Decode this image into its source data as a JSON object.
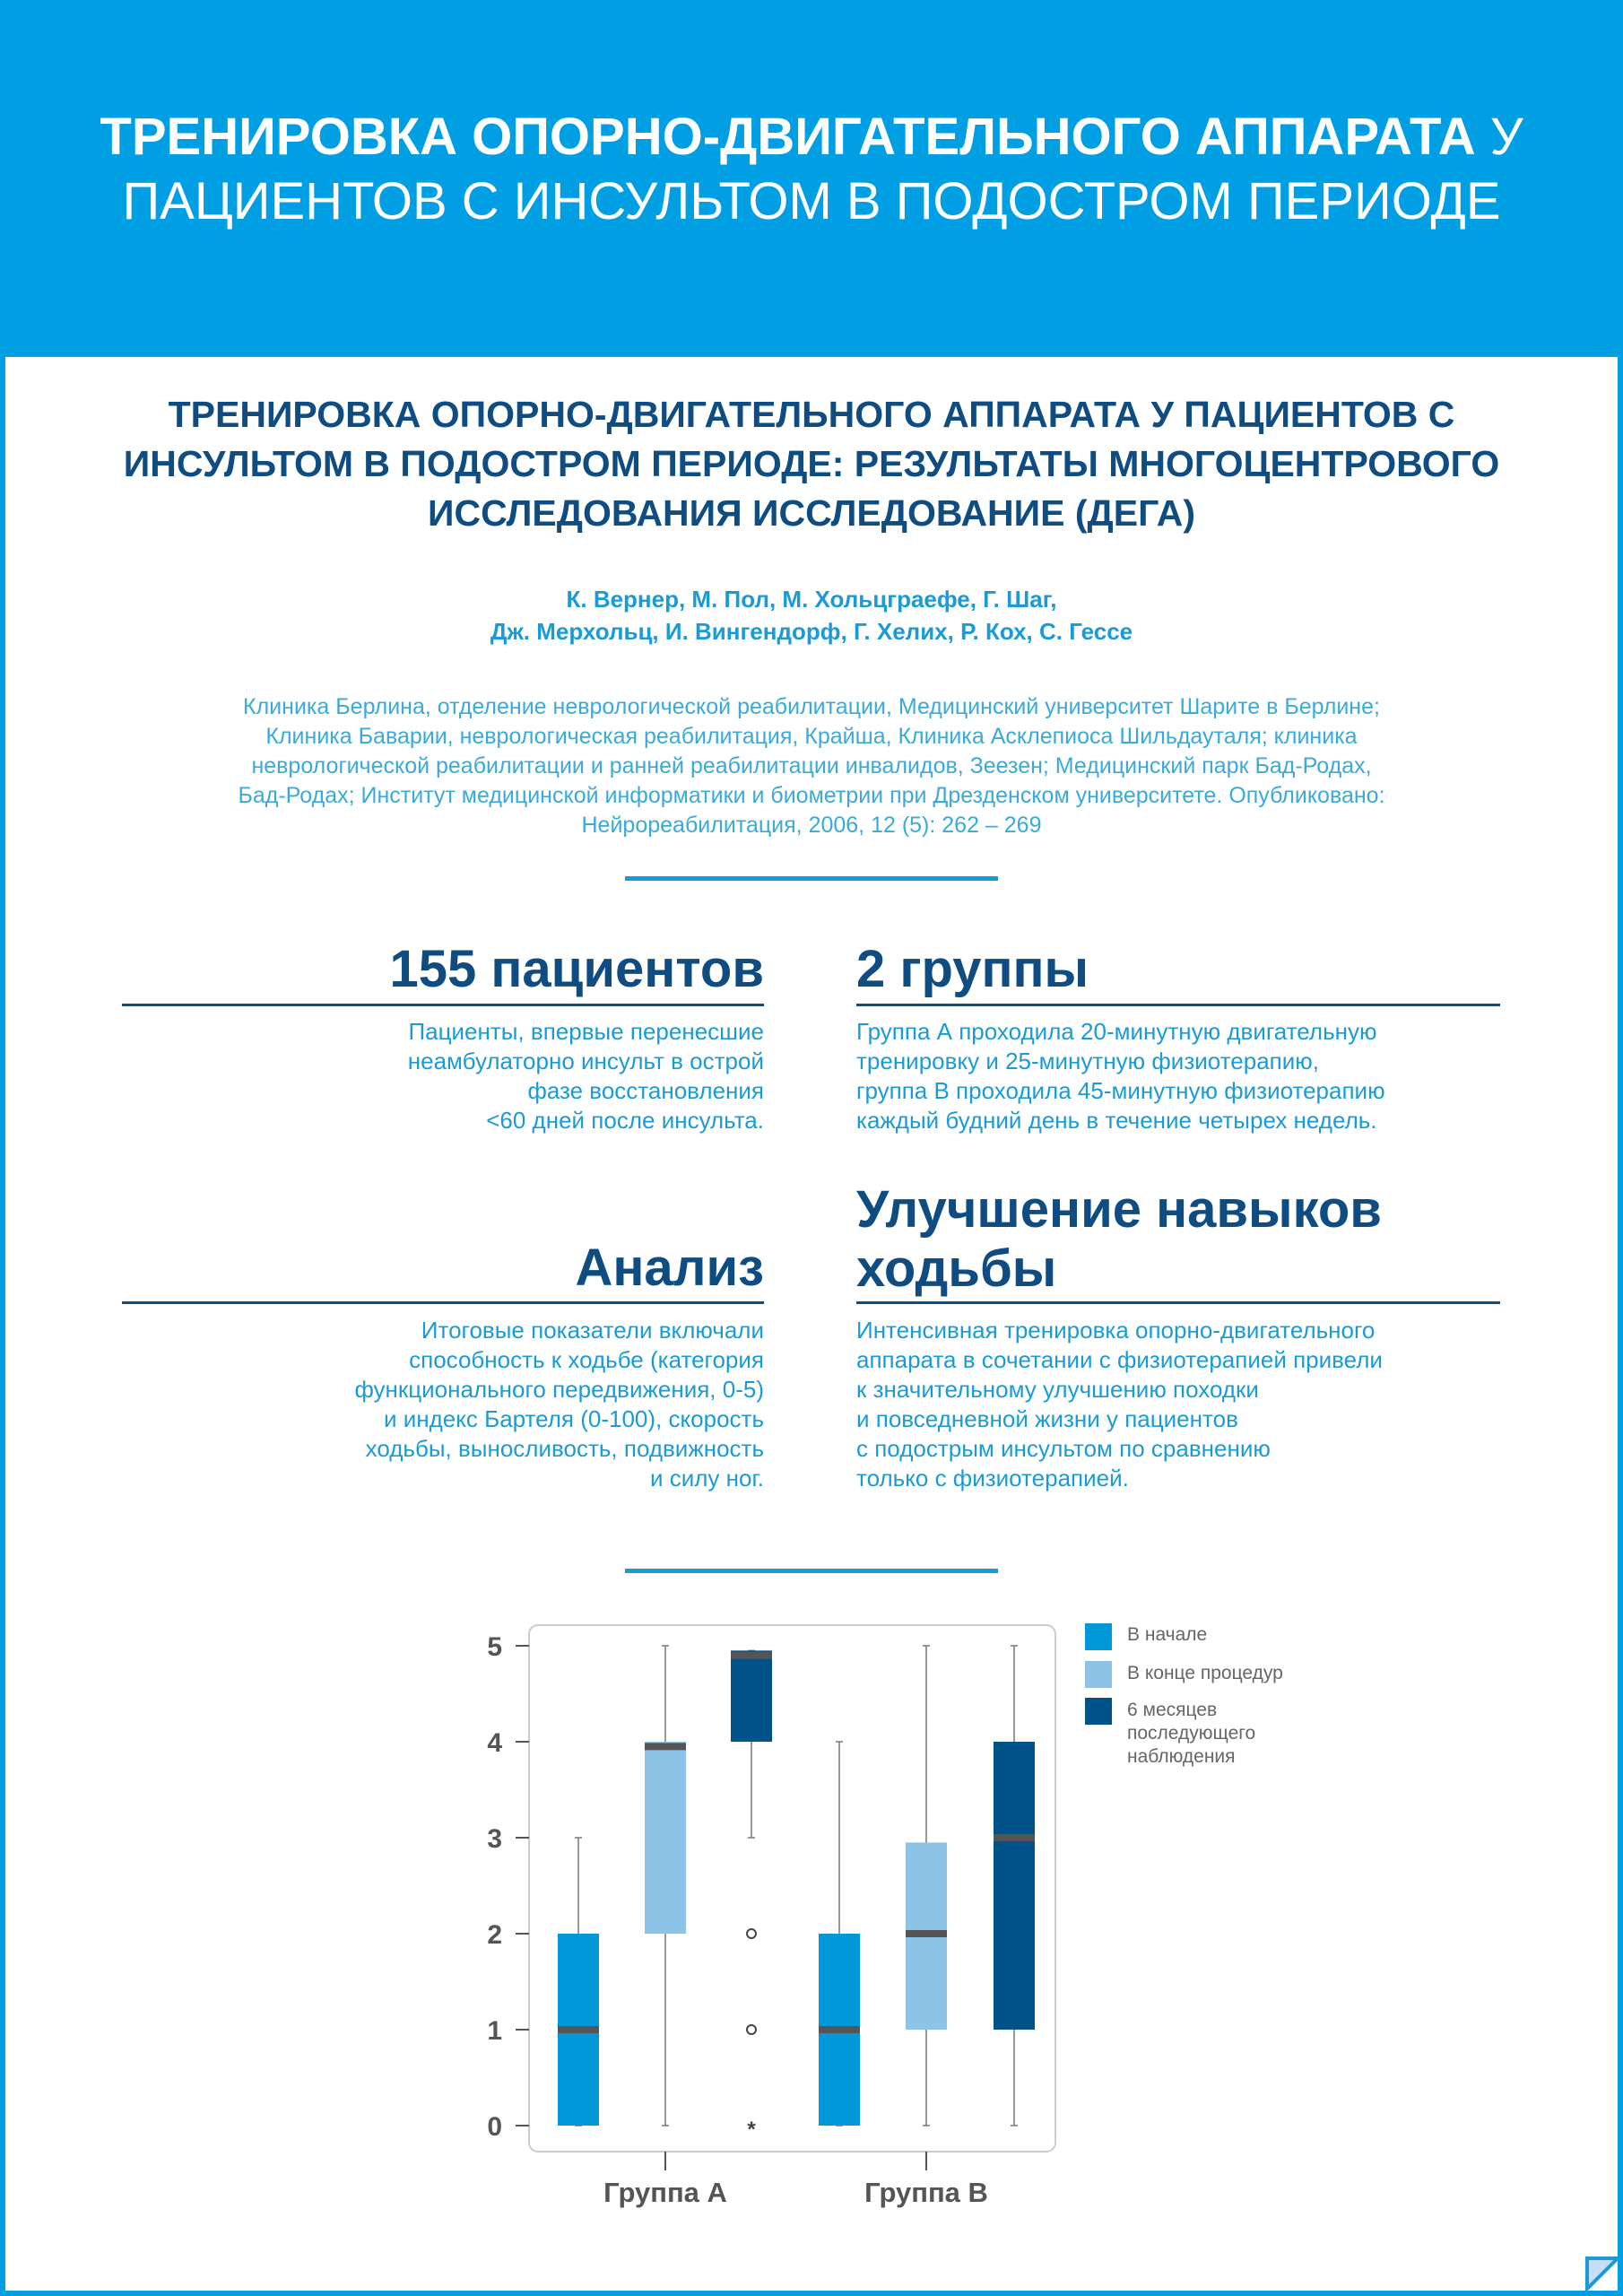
{
  "header": {
    "title_bold": "ТРЕНИРОВКА ОПОРНО-ДВИГАТЕЛЬНОГО АППАРАТА",
    "title_rest": " У",
    "title_line2": "ПАЦИЕНТОВ С ИНСУЛЬТОМ В ПОДОСТРОМ ПЕРИОДЕ"
  },
  "paper": {
    "title_lines": [
      "ТРЕНИРОВКА ОПОРНО-ДВИГАТЕЛЬНОГО АППАРАТА У ПАЦИЕНТОВ С",
      "ИНСУЛЬТОМ В ПОДОСТРОМ ПЕРИОДЕ:  РЕЗУЛЬТАТЫ МНОГОЦЕНТРОВОГО",
      "ИССЛЕДОВАНИЯ ИССЛЕДОВАНИЕ (ДЕГА)"
    ],
    "authors": [
      "К. Вернер, М. Пол, М. Хольцграефе, Г. Шаг,",
      "Дж. Мерхольц, И. Вингендорф, Г. Хелих, Р. Кох, С. Гессе"
    ],
    "affiliations": [
      "Клиника Берлина, отделение неврологической реабилитации, Медицинский университет Шарите в Берлине;",
      "Клиника Баварии, неврологическая реабилитация, Крайша, Клиника Асклепиоса Шильдауталя; клиника",
      "неврологической реабилитации и ранней реабилитации инвалидов, Зеезен; Медицинский парк Бад-Родах,",
      "Бад-Родах; Институт медицинской информатики и биометрии при Дрезденском университете. Опубликовано:",
      "Нейрореабилитация, 2006, 12 (5): 262 – 269"
    ]
  },
  "sections": {
    "patients": {
      "heading": "155 пациентов",
      "lines": [
        "Пациенты, впервые перенесшие",
        "неамбулаторно инсульт в острой",
        "фазе восстановления",
        "<60 дней после инсульта."
      ]
    },
    "groups": {
      "heading": "2 группы",
      "lines": [
        "Группа А проходила 20-минутную двигательную",
        "тренировку и 25-минутную физиотерапию,",
        "группа В проходила 45-минутную физиотерапию",
        "каждый будний день в течение четырех недель."
      ]
    },
    "analysis": {
      "heading": "Анализ",
      "lines": [
        "Итоговые показатели включали",
        "способность к ходьбе (категория",
        "функционального передвижения, 0-5)",
        "и индекс Бартеля (0-100), скорость",
        "ходьбы, выносливость, подвижность",
        "и силу ног."
      ]
    },
    "improvement": {
      "heading_lines": [
        "Улучшение навыков",
        "ходьбы"
      ],
      "lines": [
        "Интенсивная тренировка опорно-двигательного",
        "аппарата в сочетании с физиотерапией привели",
        "к значительному улучшению походки",
        "и повседневной жизни у пациентов",
        "с подострым инсультом по сравнению",
        "только с физиотерапией."
      ]
    }
  },
  "chart_data": {
    "type": "boxplot",
    "categories": [
      "Группа А",
      "Группа В"
    ],
    "ylim": [
      0,
      5
    ],
    "yticks": [
      "0",
      "1",
      "2",
      "3",
      "4",
      "5"
    ],
    "legend": {
      "placement": "right",
      "entries": [
        "В начале",
        "В конце процедур",
        "6 месяцев последующего наблюдения"
      ]
    },
    "colors": [
      "#0098d8",
      "#8ec3e8",
      "#005389"
    ],
    "series": [
      {
        "name": "В начале",
        "boxes": [
          {
            "min": 0,
            "q1": 0,
            "median": 1,
            "q3": 2,
            "max": 3,
            "outliers": []
          },
          {
            "min": 0,
            "q1": 0,
            "median": 1,
            "q3": 2,
            "max": 4,
            "outliers": []
          }
        ]
      },
      {
        "name": "В конце процедур",
        "boxes": [
          {
            "min": 0,
            "q1": 2,
            "median": 3.95,
            "q3": 4,
            "max": 5,
            "outliers": []
          },
          {
            "min": 0,
            "q1": 1,
            "median": 2,
            "q3": 2.95,
            "max": 5,
            "outliers": []
          }
        ]
      },
      {
        "name": "6 месяцев последующего наблюдения",
        "boxes": [
          {
            "min": 3,
            "q1": 4,
            "median": 4.9,
            "q3": 4.95,
            "max": 4.95,
            "outliers": [
              {
                "value": 2,
                "mark": "o"
              },
              {
                "value": 1,
                "mark": "o"
              },
              {
                "value": 0,
                "mark": "*"
              }
            ]
          },
          {
            "min": 0,
            "q1": 1,
            "median": 3,
            "q3": 4,
            "max": 5,
            "outliers": []
          }
        ]
      }
    ]
  }
}
